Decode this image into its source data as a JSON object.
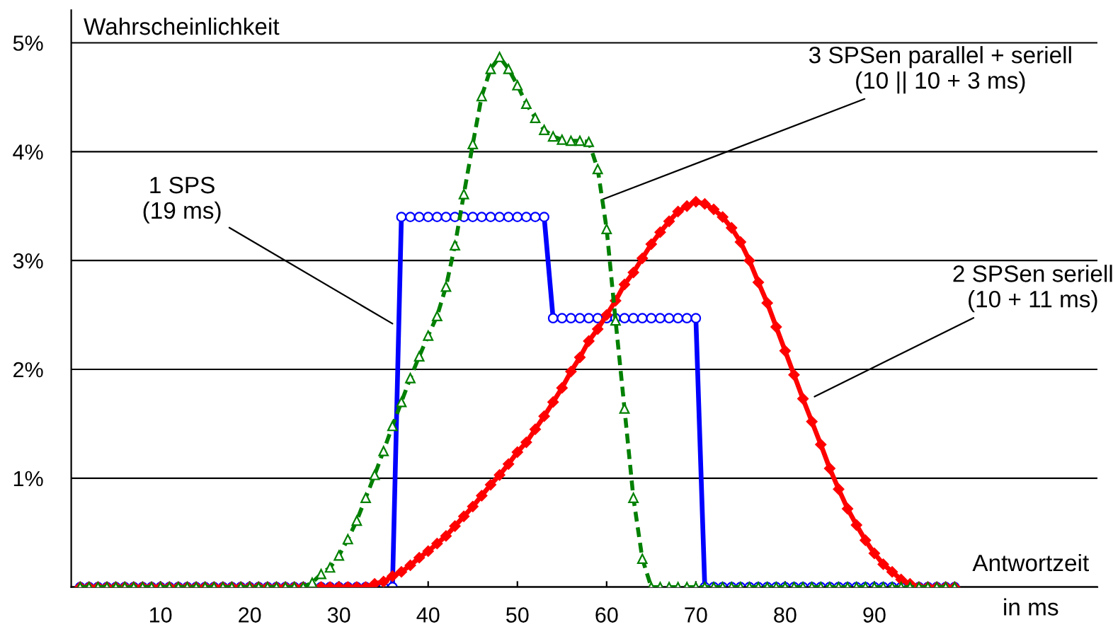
{
  "chart_data": {
    "type": "line",
    "ylabel": "Wahrscheinlichkeit",
    "xlabel": "Antwortzeit\nin ms",
    "x": [
      1,
      2,
      3,
      4,
      5,
      6,
      7,
      8,
      9,
      10,
      11,
      12,
      13,
      14,
      15,
      16,
      17,
      18,
      19,
      20,
      21,
      22,
      23,
      24,
      25,
      26,
      27,
      28,
      29,
      30,
      31,
      32,
      33,
      34,
      35,
      36,
      37,
      38,
      39,
      40,
      41,
      42,
      43,
      44,
      45,
      46,
      47,
      48,
      49,
      50,
      51,
      52,
      53,
      54,
      55,
      56,
      57,
      58,
      59,
      60,
      61,
      62,
      63,
      64,
      65,
      66,
      67,
      68,
      69,
      70,
      71,
      72,
      73,
      74,
      75,
      76,
      77,
      78,
      79,
      80,
      81,
      82,
      83,
      84,
      85,
      86,
      87,
      88,
      89,
      90,
      91,
      92,
      93,
      94,
      95,
      96,
      97,
      98,
      99
    ],
    "series": [
      {
        "color": "#0000ff",
        "marker": "circle",
        "line_style": "solid",
        "values": [
          0,
          0,
          0,
          0,
          0,
          0,
          0,
          0,
          0,
          0,
          0,
          0,
          0,
          0,
          0,
          0,
          0,
          0,
          0,
          0,
          0,
          0,
          0,
          0,
          0,
          0,
          0,
          0,
          0,
          0,
          0,
          0,
          0,
          0,
          0,
          0,
          3.4,
          3.4,
          3.4,
          3.4,
          3.4,
          3.4,
          3.4,
          3.4,
          3.4,
          3.4,
          3.4,
          3.4,
          3.4,
          3.4,
          3.4,
          3.4,
          3.4,
          2.47,
          2.47,
          2.47,
          2.47,
          2.47,
          2.47,
          2.47,
          2.47,
          2.47,
          2.47,
          2.47,
          2.47,
          2.47,
          2.47,
          2.47,
          2.47,
          2.47,
          0,
          0,
          0,
          0,
          0,
          0,
          0,
          0,
          0,
          0,
          0,
          0,
          0,
          0,
          0,
          0,
          0,
          0,
          0,
          0,
          0,
          0,
          0,
          0,
          0,
          0,
          0,
          0,
          0
        ]
      },
      {
        "color": "#008000",
        "marker": "triangle",
        "line_style": "dashed",
        "values": [
          0,
          0,
          0,
          0,
          0,
          0,
          0,
          0,
          0,
          0,
          0,
          0,
          0,
          0,
          0,
          0,
          0,
          0,
          0,
          0,
          0,
          0,
          0,
          0,
          0,
          0,
          0.04,
          0.12,
          0.18,
          0.29,
          0.44,
          0.61,
          0.82,
          1.03,
          1.25,
          1.48,
          1.7,
          1.92,
          2.12,
          2.31,
          2.49,
          2.76,
          3.14,
          3.61,
          4.07,
          4.51,
          4.76,
          4.87,
          4.76,
          4.61,
          4.44,
          4.31,
          4.2,
          4.14,
          4.11,
          4.1,
          4.1,
          4.09,
          3.84,
          3.29,
          2.45,
          1.64,
          0.82,
          0.26,
          0,
          0,
          0,
          0,
          0,
          0,
          0,
          0,
          0,
          0,
          0,
          0,
          0,
          0,
          0,
          0,
          0,
          0,
          0,
          0,
          0,
          0,
          0,
          0,
          0,
          0,
          0,
          0,
          0,
          0,
          0,
          0,
          0,
          0,
          0
        ]
      },
      {
        "color": "#ff0000",
        "marker": "diamond",
        "line_style": "solid",
        "values": [
          0,
          0,
          0,
          0,
          0,
          0,
          0,
          0,
          0,
          0,
          0,
          0,
          0,
          0,
          0,
          0,
          0,
          0,
          0,
          0,
          0,
          0,
          0,
          0,
          0,
          0,
          0,
          0,
          0,
          0,
          0,
          0,
          0,
          0.03,
          0.05,
          0.1,
          0.14,
          0.2,
          0.27,
          0.33,
          0.4,
          0.47,
          0.56,
          0.65,
          0.74,
          0.84,
          0.94,
          1.03,
          1.13,
          1.24,
          1.33,
          1.45,
          1.57,
          1.7,
          1.83,
          1.98,
          2.11,
          2.26,
          2.37,
          2.5,
          2.63,
          2.78,
          2.89,
          3.02,
          3.15,
          3.26,
          3.36,
          3.45,
          3.5,
          3.54,
          3.52,
          3.47,
          3.4,
          3.3,
          3.17,
          3.0,
          2.8,
          2.61,
          2.39,
          2.17,
          1.95,
          1.73,
          1.52,
          1.31,
          1.09,
          0.9,
          0.72,
          0.57,
          0.43,
          0.31,
          0.21,
          0.14,
          0.07,
          0.03,
          0,
          0,
          0,
          0,
          0
        ]
      }
    ],
    "xlim": [
      0,
      115
    ],
    "xticks": [
      10,
      20,
      30,
      40,
      50,
      60,
      70,
      80,
      90
    ],
    "ylim": [
      0,
      5.3
    ],
    "yticks": [
      {
        "value": 0,
        "label": null
      },
      {
        "value": 1,
        "label": "1%"
      },
      {
        "value": 2,
        "label": "2%"
      },
      {
        "value": 3,
        "label": "3%"
      },
      {
        "value": 4,
        "label": "4%"
      },
      {
        "value": 5,
        "label": "5%"
      }
    ],
    "grid": "y",
    "legend": false,
    "annotations": [
      {
        "text": "1 SPS\n(19 ms)",
        "x": 36,
        "y": 2.42
      },
      {
        "text": "3 SPSen parallel + seriell\n(10 || 10 + 3 ms)",
        "x": 59.5,
        "y": 3.56
      },
      {
        "text": "2 SPSen seriell\n(10 + 11 ms)",
        "x": 83.3,
        "y": 1.75
      }
    ]
  }
}
